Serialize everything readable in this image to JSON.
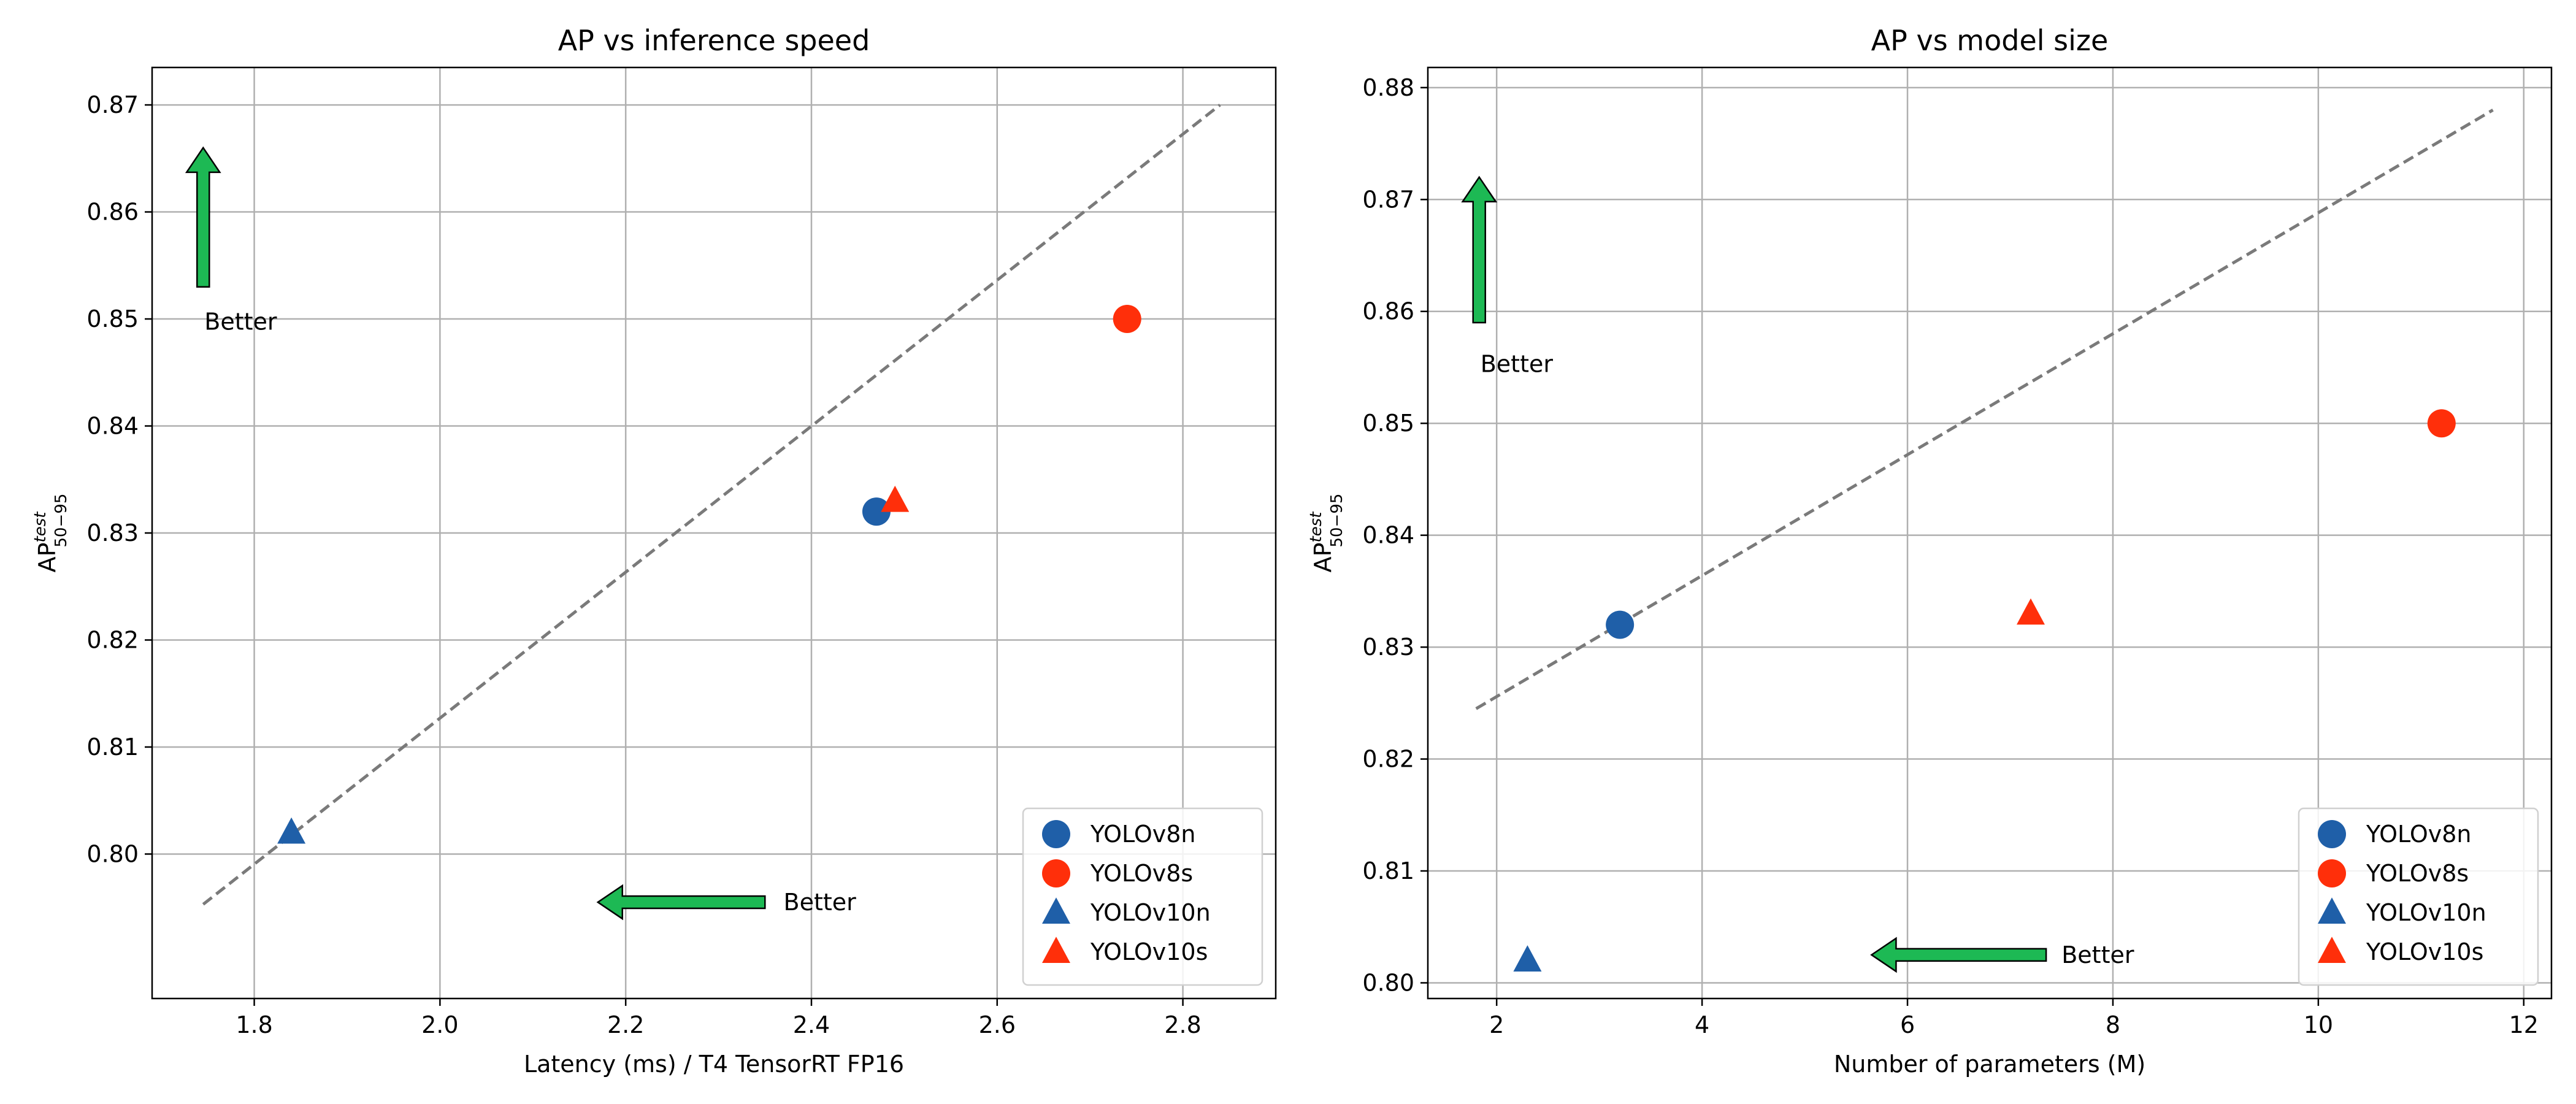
{
  "chart_data": [
    {
      "type": "scatter",
      "title": "AP vs inference speed",
      "xlabel": "Latency (ms) / T4 TensorRT FP16",
      "ylabel": {
        "base": "AP",
        "sup": "test",
        "sub": "50−95"
      },
      "xlim": [
        1.69,
        2.9
      ],
      "ylim": [
        0.7865,
        0.8735
      ],
      "xticks": [
        1.8,
        2.0,
        2.2,
        2.4,
        2.6,
        2.8
      ],
      "yticks": [
        0.8,
        0.81,
        0.82,
        0.83,
        0.84,
        0.85,
        0.86,
        0.87
      ],
      "grid": true,
      "legend_position": "lower-right",
      "series": [
        {
          "name": "YOLOv8n",
          "marker": "circle",
          "color": "#1f5fa8",
          "points": [
            {
              "x": 2.47,
              "y": 0.832
            }
          ]
        },
        {
          "name": "YOLOv8s",
          "marker": "circle",
          "color": "#ff2f0a",
          "points": [
            {
              "x": 2.74,
              "y": 0.85
            }
          ]
        },
        {
          "name": "YOLOv10n",
          "marker": "triangle",
          "color": "#1f5fa8",
          "points": [
            {
              "x": 1.84,
              "y": 0.802
            }
          ]
        },
        {
          "name": "YOLOv10s",
          "marker": "triangle",
          "color": "#ff2f0a",
          "points": [
            {
              "x": 2.49,
              "y": 0.833
            }
          ]
        }
      ],
      "trend_line": {
        "style": "dashed",
        "color": "#7a7a7a",
        "from": {
          "x": 1.745,
          "y": 0.7953
        },
        "to": {
          "x": 2.84,
          "y": 0.87
        }
      },
      "annotations": [
        {
          "text": "Better",
          "arrow": "up",
          "tail": {
            "x": 1.745,
            "y": 0.853
          },
          "head": {
            "x": 1.745,
            "y": 0.866
          },
          "label": {
            "x": 1.745,
            "y": 0.8505
          }
        },
        {
          "text": "Better",
          "arrow": "left",
          "tail": {
            "x": 2.35,
            "y": 0.7955
          },
          "head": {
            "x": 2.17,
            "y": 0.7955
          },
          "label": {
            "x": 2.37,
            "y": 0.7955
          }
        }
      ]
    },
    {
      "type": "scatter",
      "title": "AP vs model size",
      "xlabel": "Number of parameters (M)",
      "ylabel": {
        "base": "AP",
        "sup": "test",
        "sub": "50−95"
      },
      "xlim": [
        1.33,
        12.27
      ],
      "ylim": [
        0.7986,
        0.8818
      ],
      "xticks": [
        2,
        4,
        6,
        8,
        10,
        12
      ],
      "yticks": [
        0.8,
        0.81,
        0.82,
        0.83,
        0.84,
        0.85,
        0.86,
        0.87,
        0.88
      ],
      "grid": true,
      "legend_position": "lower-right",
      "series": [
        {
          "name": "YOLOv8n",
          "marker": "circle",
          "color": "#1f5fa8",
          "points": [
            {
              "x": 3.2,
              "y": 0.832
            }
          ]
        },
        {
          "name": "YOLOv8s",
          "marker": "circle",
          "color": "#ff2f0a",
          "points": [
            {
              "x": 11.2,
              "y": 0.85
            }
          ]
        },
        {
          "name": "YOLOv10n",
          "marker": "triangle",
          "color": "#1f5fa8",
          "points": [
            {
              "x": 2.3,
              "y": 0.802
            }
          ]
        },
        {
          "name": "YOLOv10s",
          "marker": "triangle",
          "color": "#ff2f0a",
          "points": [
            {
              "x": 7.2,
              "y": 0.833
            }
          ]
        }
      ],
      "trend_line": {
        "style": "dashed",
        "color": "#7a7a7a",
        "from": {
          "x": 1.8,
          "y": 0.8245
        },
        "to": {
          "x": 11.7,
          "y": 0.878
        }
      },
      "annotations": [
        {
          "text": "Better",
          "arrow": "up",
          "tail": {
            "x": 1.83,
            "y": 0.859
          },
          "head": {
            "x": 1.83,
            "y": 0.872
          },
          "label": {
            "x": 1.83,
            "y": 0.856
          }
        },
        {
          "text": "Better",
          "arrow": "left",
          "tail": {
            "x": 7.35,
            "y": 0.8025
          },
          "head": {
            "x": 5.65,
            "y": 0.8025
          },
          "label": {
            "x": 7.5,
            "y": 0.8025
          }
        }
      ]
    }
  ]
}
